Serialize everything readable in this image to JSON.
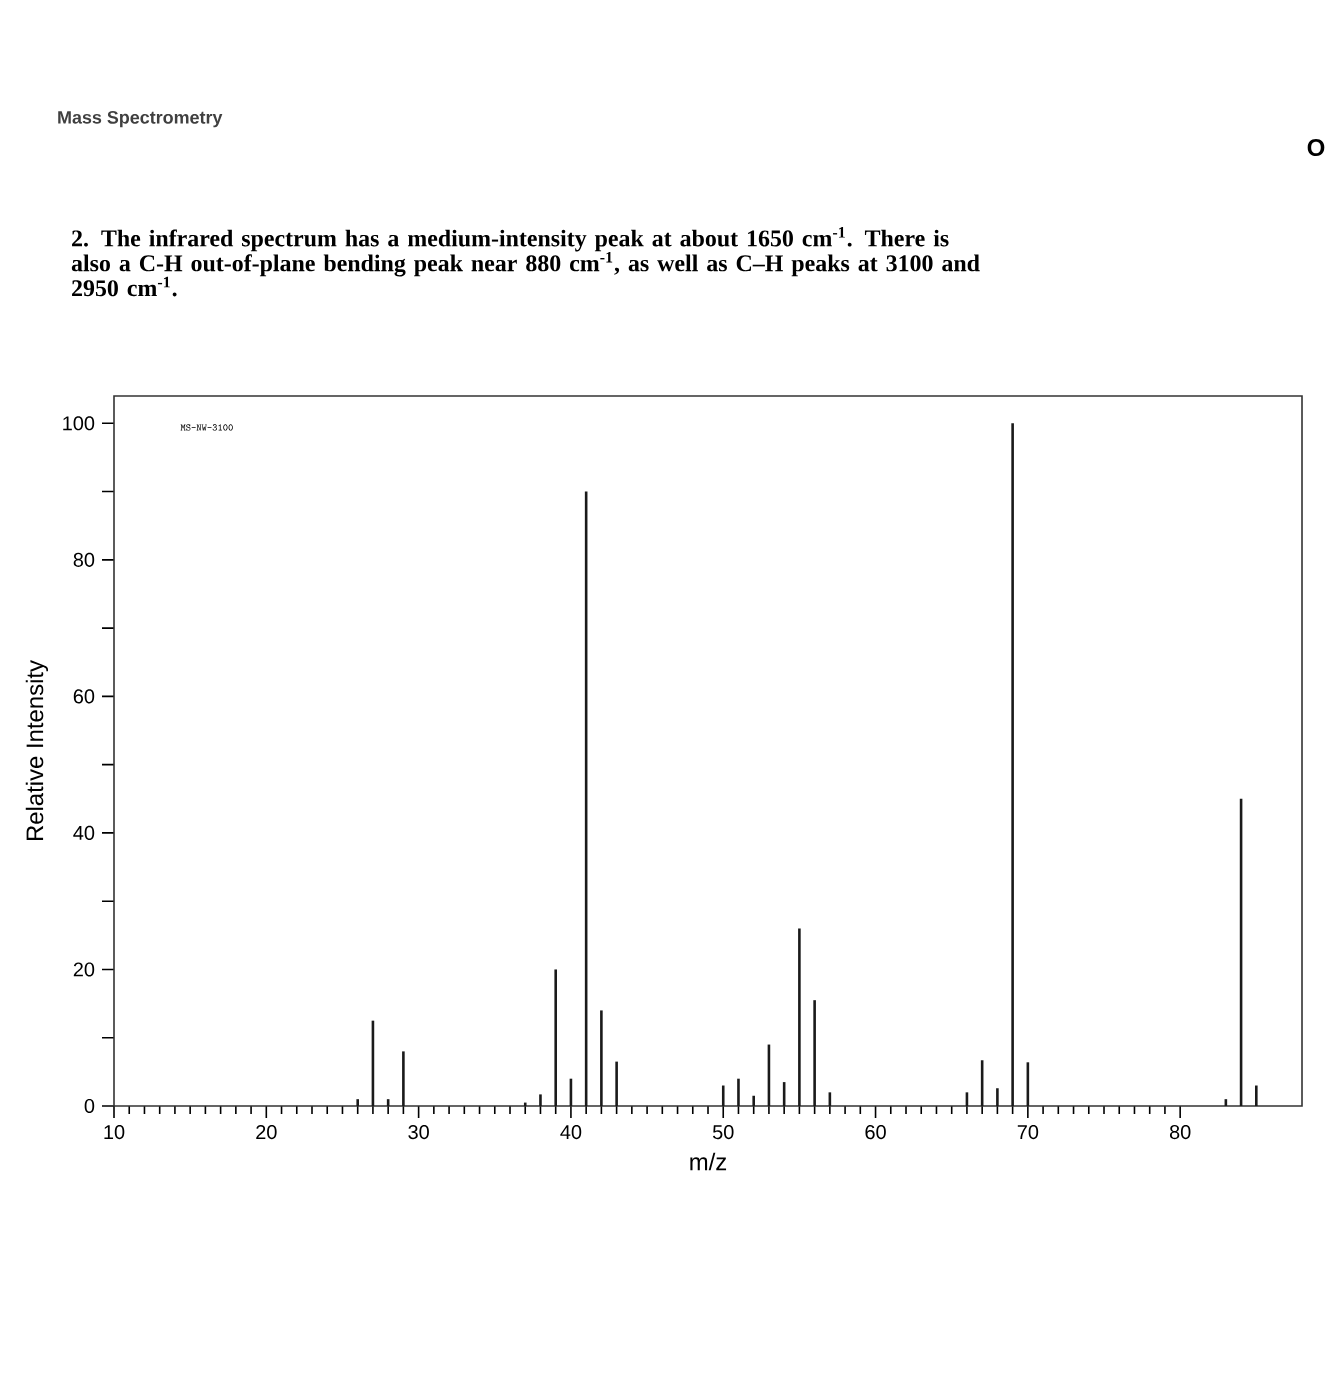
{
  "chart_data": {
    "type": "bar",
    "xlabel": "m/z",
    "ylabel": "Relative Intensity",
    "color": "#1a1a1a",
    "annotations": [
      "Mass Spectrometry",
      "O",
      "2. The infrared spectrum has a medium-intensity peak at about 1650 cm$^{-1}$. There is also a C-H out-of-plane bending peak near 880 cm$^{-1}$, as well as C–H peaks at 3100 and 2950 cm$^{-1}$.",
      "MS-NW-3100"
    ],
    "x": [
      26,
      27,
      28,
      29,
      37,
      38,
      39,
      40,
      41,
      42,
      43,
      50,
      51,
      52,
      53,
      54,
      55,
      56,
      57,
      66,
      67,
      68,
      69,
      70,
      83,
      84,
      85
    ],
    "values": [
      1,
      12.5,
      1,
      8,
      0.5,
      1.7,
      20,
      4,
      90,
      14,
      6.5,
      3,
      4,
      1.5,
      9,
      3.5,
      26,
      15.5,
      2,
      2,
      6.7,
      2.6,
      100,
      6.4,
      1,
      45,
      3
    ],
    "xlim": [
      10,
      88
    ],
    "ylim": [
      0,
      104
    ],
    "xticks": [
      10,
      20,
      30,
      40,
      50,
      60,
      70,
      80
    ],
    "yticks": [
      0,
      {
        "value": 10,
        "label": null
      },
      20,
      {
        "value": 30,
        "label": null
      },
      40,
      {
        "value": 50,
        "label": null
      },
      60,
      {
        "value": 70,
        "label": null
      },
      80,
      {
        "value": 90,
        "label": null
      },
      100
    ]
  }
}
